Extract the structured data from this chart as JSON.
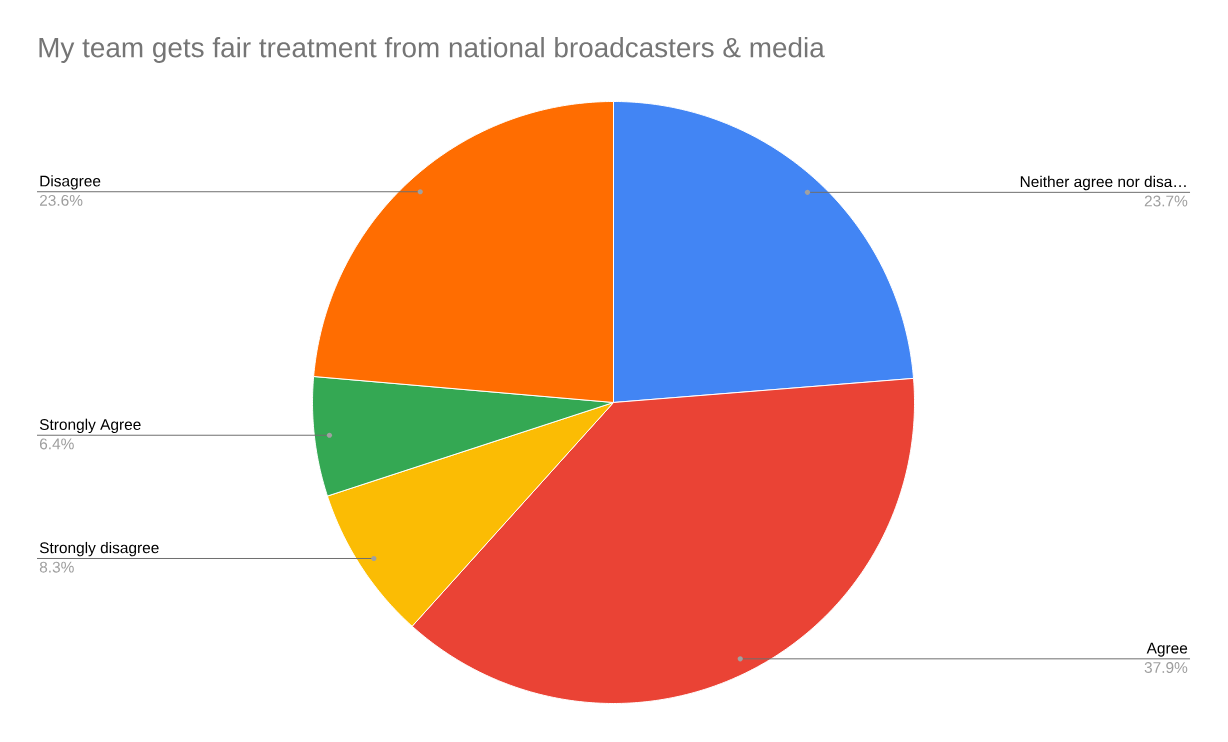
{
  "chart_data": {
    "type": "pie",
    "title": "My team gets fair treatment from national broadcasters & media",
    "categories": [
      "Neither agree nor disa…",
      "Agree",
      "Strongly disagree",
      "Strongly Agree",
      "Disagree"
    ],
    "values": [
      23.7,
      37.9,
      8.3,
      6.4,
      23.6
    ],
    "value_labels": [
      "23.7%",
      "37.9%",
      "8.3%",
      "6.4%",
      "23.6%"
    ],
    "colors": [
      "#4285f4",
      "#ea4335",
      "#fbbc04",
      "#34a853",
      "#ff6d01"
    ]
  }
}
